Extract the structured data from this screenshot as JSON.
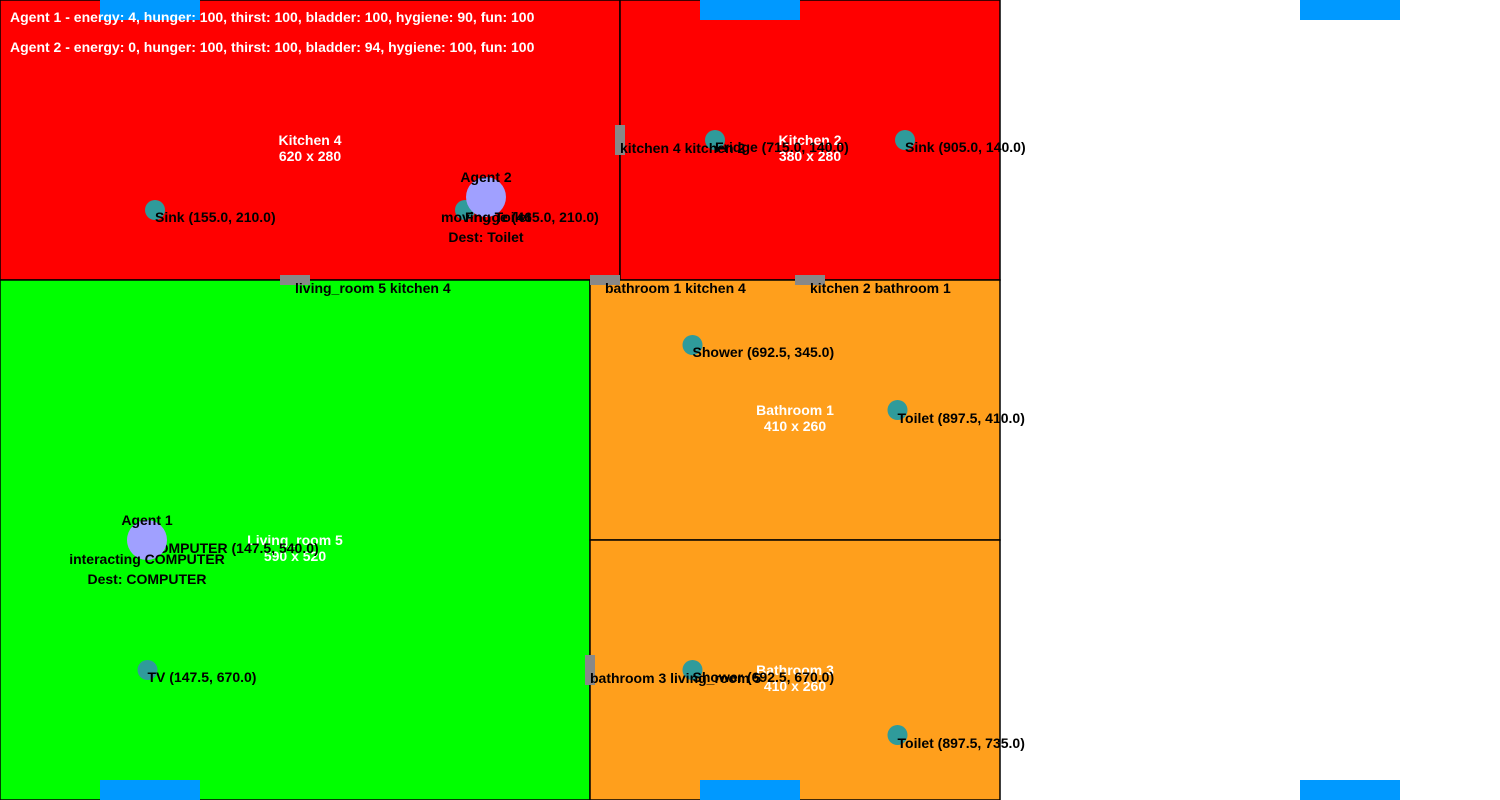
{
  "status_lines": [
    "Agent 1 - energy: 4, hunger: 100, thirst: 100, bladder: 100, hygiene: 90, fun: 100",
    "Agent 2 - energy: 0, hunger: 100, thirst: 100, bladder: 94, hygiene: 100, fun: 100"
  ],
  "colors": {
    "kitchen": "#ff0000",
    "living_room": "#00ff00",
    "bathroom": "#ff9f1c",
    "window": "#0099ff",
    "door": "#888888",
    "object": "#2f9b9b",
    "agent": "#a0a0ff",
    "background": "#ffffff"
  },
  "rooms": [
    {
      "id": "kitchen-4",
      "name": "Kitchen 4",
      "size": "620 x 280"
    },
    {
      "id": "kitchen-2",
      "name": "Kitchen 2",
      "size": "380 x 280"
    },
    {
      "id": "living-room-5",
      "name": "Living_room 5",
      "size": "590 x 520"
    },
    {
      "id": "bathroom-1",
      "name": "Bathroom 1",
      "size": "410 x 260"
    },
    {
      "id": "bathroom-3",
      "name": "Bathroom 3",
      "size": "410 x 260"
    }
  ],
  "doors": [
    {
      "id": "kitchen4-kitchen2",
      "label": "kitchen 4 kitchen 2"
    },
    {
      "id": "living5-kitchen4",
      "label": "living_room 5 kitchen 4"
    },
    {
      "id": "bathroom1-kitchen4",
      "label": "bathroom 1 kitchen 4"
    },
    {
      "id": "kitchen2-bathroom1",
      "label": "kitchen 2 bathroom 1"
    },
    {
      "id": "bathroom3-living5",
      "label": "bathroom 3 living_room 5"
    }
  ],
  "objects": [
    {
      "id": "sink-k4",
      "label": "Sink (155.0, 210.0)"
    },
    {
      "id": "fridge-k4",
      "label": "Fridge (465.0, 210.0)"
    },
    {
      "id": "fridge-k2",
      "label": "Fridge (715.0, 140.0)"
    },
    {
      "id": "sink-k2",
      "label": "Sink (905.0, 140.0)"
    },
    {
      "id": "computer-l5",
      "label": "COMPUTER (147.5, 540.0)"
    },
    {
      "id": "tv-l5",
      "label": "TV (147.5, 670.0)"
    },
    {
      "id": "shower-b1",
      "label": "Shower (692.5, 345.0)"
    },
    {
      "id": "toilet-b1",
      "label": "Toilet (897.5, 410.0)"
    },
    {
      "id": "shower-b3",
      "label": "Shower (692.5, 670.0)"
    },
    {
      "id": "toilet-b3",
      "label": "Toilet (897.5, 735.0)"
    }
  ],
  "agents": [
    {
      "id": "agent-1",
      "name": "Agent 1",
      "state": "interacting COMPUTER",
      "dest": "Dest: COMPUTER"
    },
    {
      "id": "agent-2",
      "name": "Agent 2",
      "state": "moving Toilet",
      "dest": "Dest: Toilet"
    }
  ]
}
